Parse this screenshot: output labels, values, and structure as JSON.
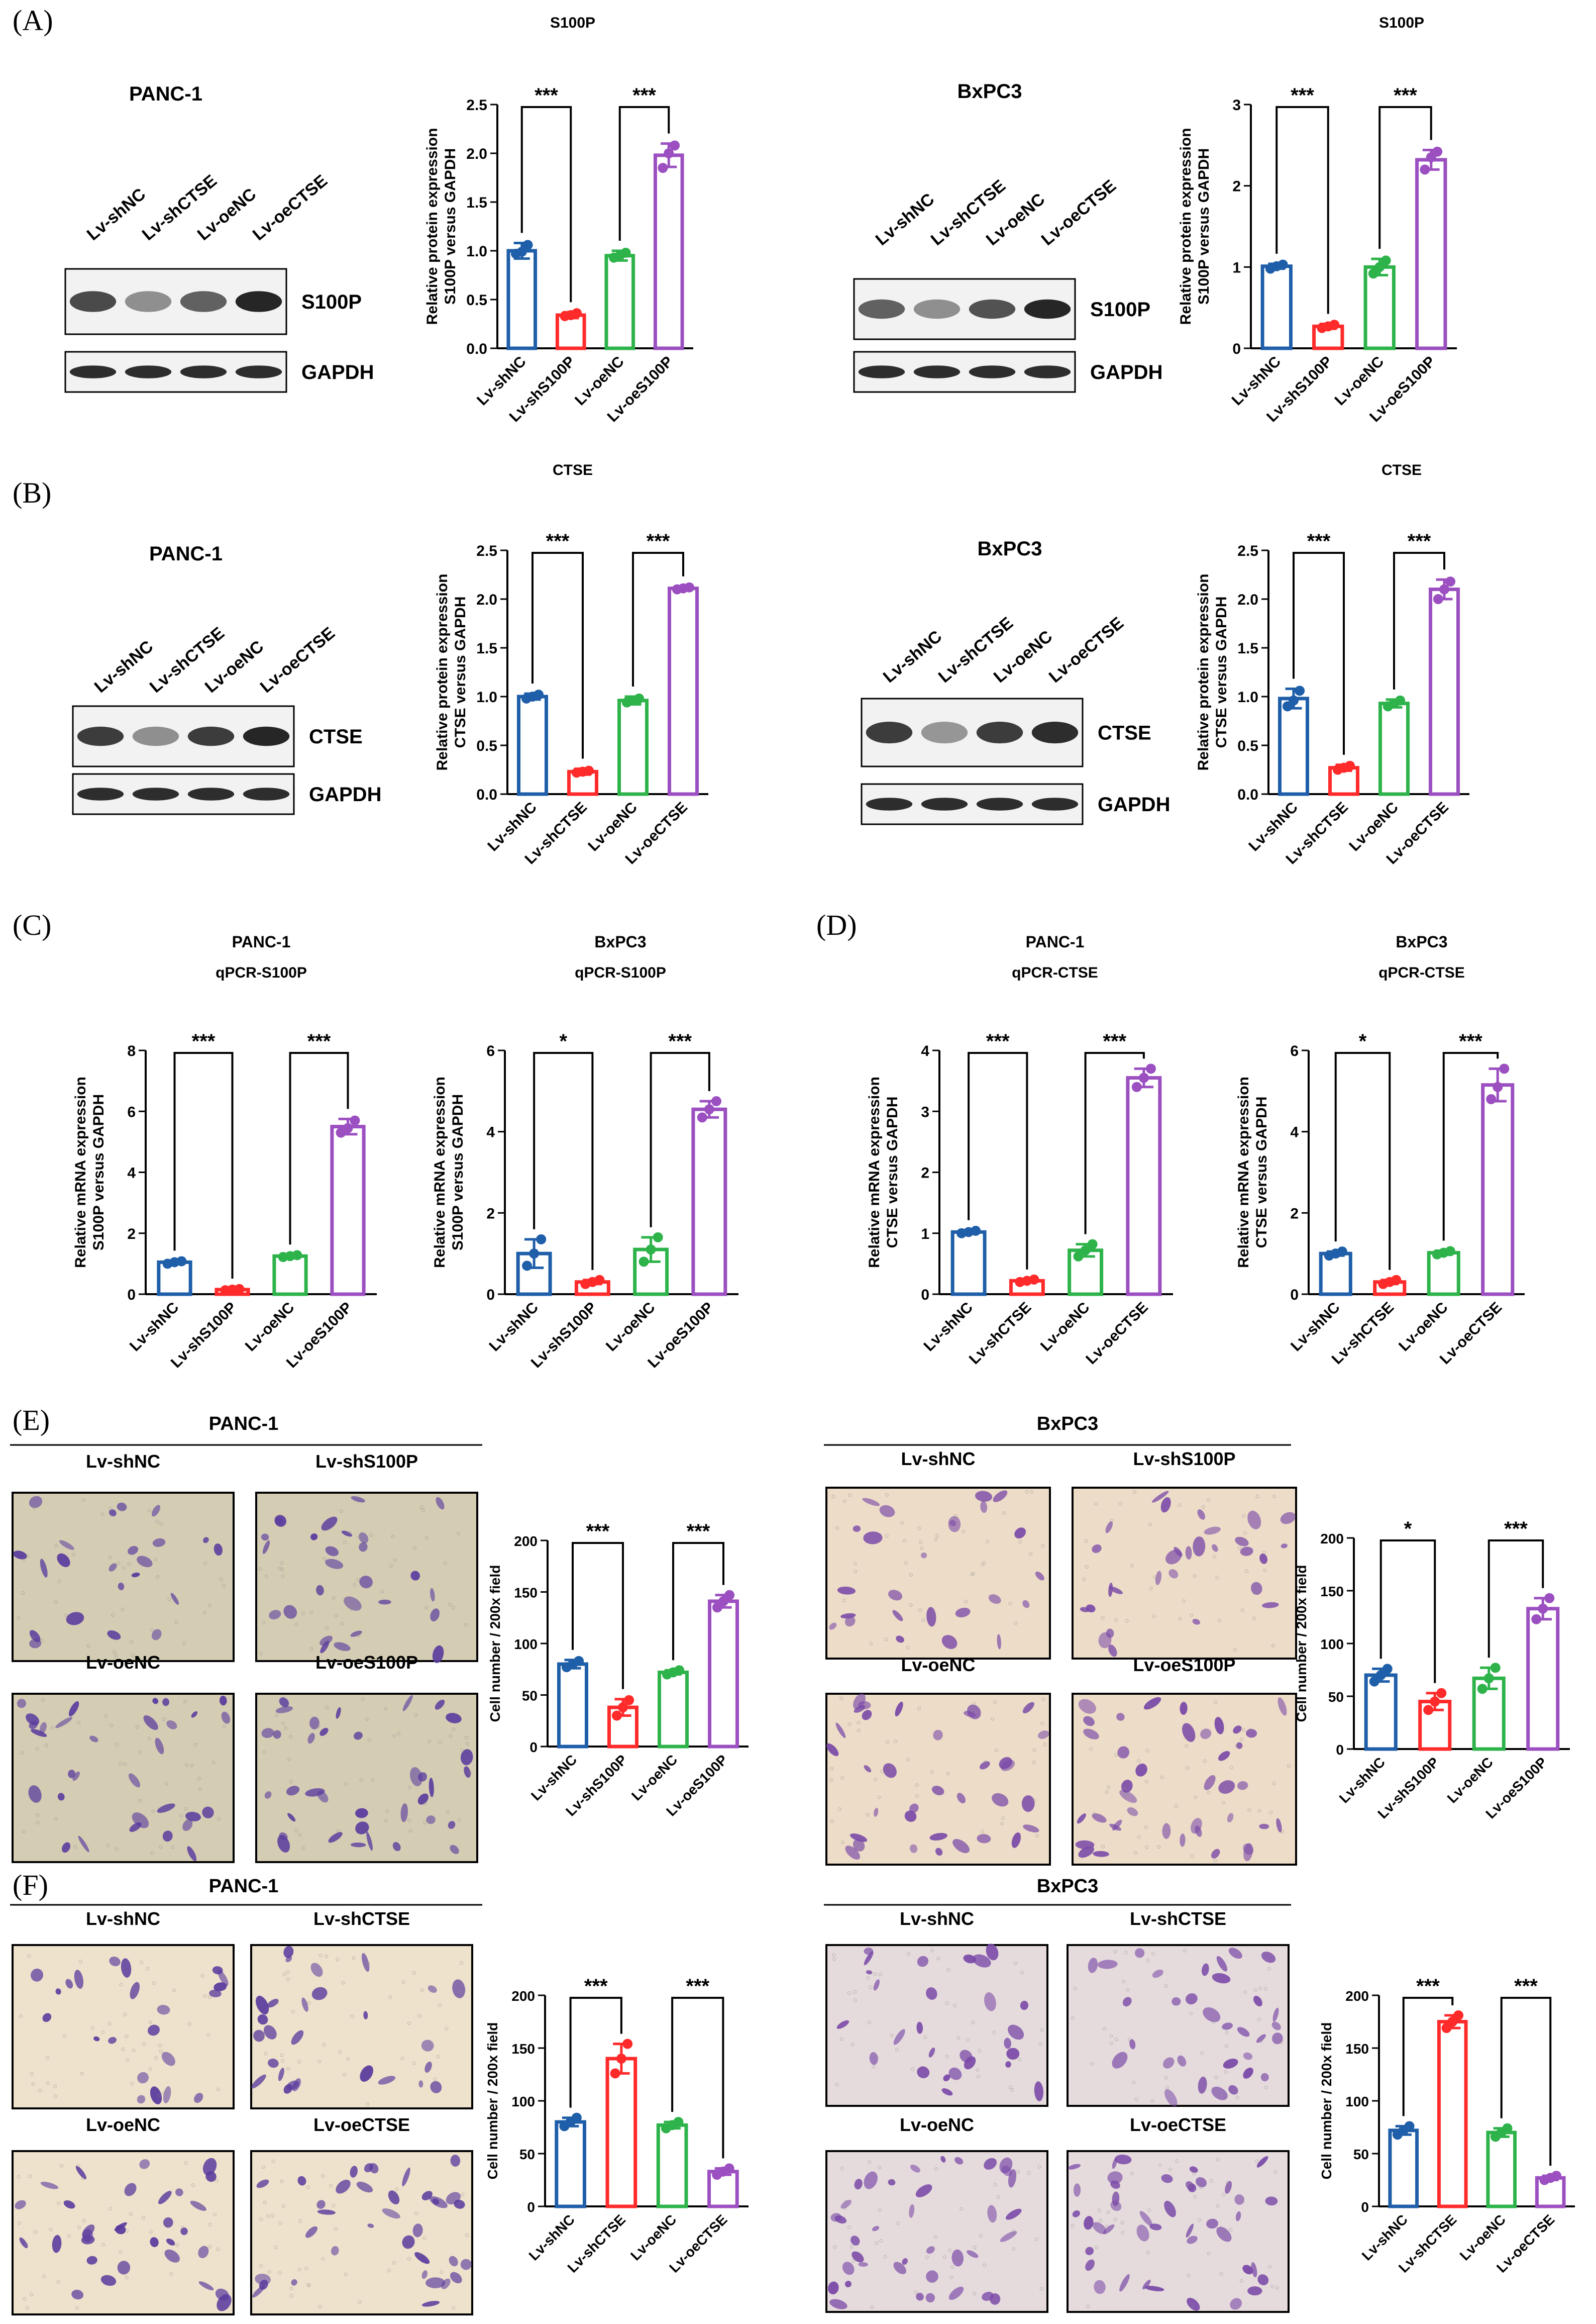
{
  "colors": {
    "blue": "#1f5ea8",
    "red": "#ff2a2a",
    "green": "#2db34a",
    "purple": "#9b4fc0",
    "ink": "#000000",
    "band": "#1a1a1a",
    "stainA": "#5a3c9e",
    "stainB": "#7a4aa8"
  },
  "panels": {
    "A": {
      "letter": "(A)",
      "left_title": "PANC-1",
      "right_title": "BxPC3",
      "blot_lanes": [
        "Lv-shNC",
        "Lv-shCTSE",
        "Lv-oeNC",
        "Lv-oeCTSE"
      ],
      "blot_rows": [
        "S100P",
        "GAPDH"
      ],
      "bandsA": [
        [
          0.75,
          0.3,
          0.6,
          1.0
        ],
        [
          0.95,
          0.95,
          0.95,
          0.95
        ]
      ],
      "bandsB": [
        [
          0.6,
          0.3,
          0.7,
          1.0
        ],
        [
          0.95,
          0.95,
          0.95,
          0.95
        ]
      ]
    },
    "B": {
      "letter": "(B)",
      "left_title": "PANC-1",
      "right_title": "BxPC3",
      "blot_lanes": [
        "Lv-shNC",
        "Lv-shCTSE",
        "Lv-oeNC",
        "Lv-oeCTSE"
      ],
      "blot_rows": [
        "CTSE",
        "GAPDH"
      ],
      "bandsA": [
        [
          0.85,
          0.3,
          0.85,
          1.0
        ],
        [
          0.95,
          0.95,
          0.95,
          0.95
        ]
      ],
      "bandsB": [
        [
          0.85,
          0.25,
          0.85,
          0.95
        ],
        [
          0.95,
          0.95,
          0.95,
          0.95
        ]
      ]
    },
    "C": {
      "letter": "(C)"
    },
    "D": {
      "letter": "(D)"
    },
    "E": {
      "letter": "(E)",
      "left_title": "PANC-1",
      "right_title": "BxPC3",
      "img_labels": [
        "Lv-shNC",
        "Lv-shS100P",
        "Lv-oeNC",
        "Lv-oeS100P"
      ]
    },
    "F": {
      "letter": "(F)",
      "left_title": "PANC-1",
      "right_title": "BxPC3",
      "img_labels": [
        "Lv-shNC",
        "Lv-shCTSE",
        "Lv-oeNC",
        "Lv-oeCTSE"
      ]
    }
  },
  "chart_data": [
    {
      "id": "A1",
      "type": "bar",
      "title": "S100P",
      "ylabel": [
        "Relative protein expression",
        "S100P versus GAPDH"
      ],
      "categories": [
        "Lv-shNC",
        "Lv-shS100P",
        "Lv-oeNC",
        "Lv-oeS100P"
      ],
      "values": [
        1.0,
        0.34,
        0.95,
        1.98
      ],
      "errors": [
        0.08,
        0.03,
        0.05,
        0.12
      ],
      "points": [
        [
          0.97,
          0.99,
          1.06
        ],
        [
          0.33,
          0.34,
          0.36
        ],
        [
          0.93,
          0.95,
          0.98
        ],
        [
          1.85,
          2.0,
          2.08
        ]
      ],
      "ylim": [
        0,
        2.5
      ],
      "yticks": [
        0,
        0.5,
        1.0,
        1.5,
        2.0,
        2.5
      ],
      "ticklabels": [
        "0.0",
        "0.5",
        "1.0",
        "1.5",
        "2.0",
        "2.5"
      ],
      "sig": [
        "***",
        "***"
      ]
    },
    {
      "id": "A2",
      "type": "bar",
      "title": "S100P",
      "ylabel": [
        "Relative protein expression",
        "S100P versus GAPDH"
      ],
      "categories": [
        "Lv-shNC",
        "Lv-shS100P",
        "Lv-oeNC",
        "Lv-oeS100P"
      ],
      "values": [
        1.01,
        0.27,
        1.0,
        2.32
      ],
      "errors": [
        0.03,
        0.03,
        0.1,
        0.12
      ],
      "points": [
        [
          0.98,
          1.01,
          1.03
        ],
        [
          0.25,
          0.27,
          0.29
        ],
        [
          0.92,
          1.0,
          1.08
        ],
        [
          2.2,
          2.35,
          2.42
        ]
      ],
      "ylim": [
        0,
        3
      ],
      "yticks": [
        0,
        1,
        2,
        3
      ],
      "ticklabels": [
        "0",
        "1",
        "2",
        "3"
      ],
      "sig": [
        "***",
        "***"
      ]
    },
    {
      "id": "B1",
      "type": "bar",
      "title": "CTSE",
      "ylabel": [
        "Relative protein expression",
        "CTSE versus GAPDH"
      ],
      "categories": [
        "Lv-shNC",
        "Lv-shCTSE",
        "Lv-oeNC",
        "Lv-oeCTSE"
      ],
      "values": [
        1.0,
        0.23,
        0.96,
        2.11
      ],
      "errors": [
        0.03,
        0.03,
        0.04,
        0.02
      ],
      "points": [
        [
          0.98,
          1.0,
          1.02
        ],
        [
          0.22,
          0.23,
          0.24
        ],
        [
          0.94,
          0.96,
          0.98
        ],
        [
          2.1,
          2.11,
          2.12
        ]
      ],
      "ylim": [
        0,
        2.5
      ],
      "yticks": [
        0,
        0.5,
        1.0,
        1.5,
        2.0,
        2.5
      ],
      "ticklabels": [
        "0.0",
        "0.5",
        "1.0",
        "1.5",
        "2.0",
        "2.5"
      ],
      "sig": [
        "***",
        "***"
      ]
    },
    {
      "id": "B2",
      "type": "bar",
      "title": "CTSE",
      "ylabel": [
        "Relative protein expression",
        "CTSE versus GAPDH"
      ],
      "categories": [
        "Lv-shNC",
        "Lv-shCTSE",
        "Lv-oeNC",
        "Lv-oeCTSE"
      ],
      "values": [
        0.98,
        0.27,
        0.93,
        2.1
      ],
      "errors": [
        0.1,
        0.03,
        0.04,
        0.1
      ],
      "points": [
        [
          0.9,
          0.96,
          1.06
        ],
        [
          0.25,
          0.27,
          0.29
        ],
        [
          0.9,
          0.93,
          0.96
        ],
        [
          2.0,
          2.1,
          2.18
        ]
      ],
      "ylim": [
        0,
        2.5
      ],
      "yticks": [
        0,
        0.5,
        1.0,
        1.5,
        2.0,
        2.5
      ],
      "ticklabels": [
        "0.0",
        "0.5",
        "1.0",
        "1.5",
        "2.0",
        "2.5"
      ],
      "sig": [
        "***",
        "***"
      ]
    },
    {
      "id": "C1",
      "type": "bar",
      "subtitle": "PANC-1",
      "title": "qPCR-S100P",
      "ylabel": [
        "Relative mRNA expression",
        "S100P versus GAPDH"
      ],
      "categories": [
        "Lv-shNC",
        "Lv-shS100P",
        "Lv-oeNC",
        "Lv-oeS100P"
      ],
      "values": [
        1.05,
        0.15,
        1.25,
        5.5
      ],
      "errors": [
        0.05,
        0.03,
        0.05,
        0.25
      ],
      "points": [
        [
          1.0,
          1.05,
          1.08
        ],
        [
          0.13,
          0.15,
          0.17
        ],
        [
          1.22,
          1.25,
          1.28
        ],
        [
          5.3,
          5.45,
          5.7
        ]
      ],
      "ylim": [
        0,
        8
      ],
      "yticks": [
        0,
        2,
        4,
        6,
        8
      ],
      "ticklabels": [
        "0",
        "2",
        "4",
        "6",
        "8"
      ],
      "sig": [
        "***",
        "***"
      ]
    },
    {
      "id": "C2",
      "type": "bar",
      "subtitle": "BxPC3",
      "title": "qPCR-S100P",
      "ylabel": [
        "Relative mRNA expression",
        "S100P versus GAPDH"
      ],
      "categories": [
        "Lv-shNC",
        "Lv-shS100P",
        "Lv-oeNC",
        "Lv-oeS100P"
      ],
      "values": [
        1.0,
        0.3,
        1.1,
        4.55
      ],
      "errors": [
        0.35,
        0.05,
        0.3,
        0.2
      ],
      "points": [
        [
          0.7,
          1.0,
          1.35
        ],
        [
          0.25,
          0.3,
          0.35
        ],
        [
          0.8,
          1.1,
          1.4
        ],
        [
          4.35,
          4.55,
          4.75
        ]
      ],
      "ylim": [
        0,
        6
      ],
      "yticks": [
        0,
        2,
        4,
        6
      ],
      "ticklabels": [
        "0",
        "2",
        "4",
        "6"
      ],
      "sig": [
        "*",
        "***"
      ]
    },
    {
      "id": "D1",
      "type": "bar",
      "subtitle": "PANC-1",
      "title": "qPCR-CTSE",
      "ylabel": [
        "Relative mRNA expression",
        "CTSE versus GAPDH"
      ],
      "categories": [
        "Lv-shNC",
        "Lv-shCTSE",
        "Lv-oeNC",
        "Lv-oeCTSE"
      ],
      "values": [
        1.02,
        0.22,
        0.72,
        3.55
      ],
      "errors": [
        0.03,
        0.02,
        0.1,
        0.15
      ],
      "points": [
        [
          1.0,
          1.02,
          1.04
        ],
        [
          0.2,
          0.22,
          0.24
        ],
        [
          0.62,
          0.72,
          0.82
        ],
        [
          3.4,
          3.55,
          3.7
        ]
      ],
      "ylim": [
        0,
        4
      ],
      "yticks": [
        0,
        1,
        2,
        3,
        4
      ],
      "ticklabels": [
        "0",
        "1",
        "2",
        "3",
        "4"
      ],
      "sig": [
        "***",
        "***"
      ]
    },
    {
      "id": "D2",
      "type": "bar",
      "subtitle": "BxPC3",
      "title": "qPCR-CTSE",
      "ylabel": [
        "Relative mRNA expression",
        "CTSE versus GAPDH"
      ],
      "categories": [
        "Lv-shNC",
        "Lv-shCTSE",
        "Lv-oeNC",
        "Lv-oeCTSE"
      ],
      "values": [
        1.0,
        0.3,
        1.02,
        5.15
      ],
      "errors": [
        0.05,
        0.05,
        0.05,
        0.4
      ],
      "points": [
        [
          0.95,
          1.0,
          1.05
        ],
        [
          0.25,
          0.3,
          0.35
        ],
        [
          0.98,
          1.02,
          1.06
        ],
        [
          4.8,
          5.1,
          5.55
        ]
      ],
      "ylim": [
        0,
        6
      ],
      "yticks": [
        0,
        2,
        4,
        6
      ],
      "ticklabels": [
        "0",
        "2",
        "4",
        "6"
      ],
      "sig": [
        "*",
        "***"
      ]
    },
    {
      "id": "E1",
      "type": "bar",
      "ylabel": [
        "Cell number / 200x field"
      ],
      "categories": [
        "Lv-shNC",
        "Lv-shS100P",
        "Lv-oeNC",
        "Lv-oeS100P"
      ],
      "values": [
        80,
        38,
        72,
        141
      ],
      "errors": [
        4,
        8,
        2,
        6
      ],
      "points": [
        [
          77,
          80,
          83
        ],
        [
          30,
          38,
          45
        ],
        [
          70,
          72,
          74
        ],
        [
          135,
          141,
          147
        ]
      ],
      "ylim": [
        0,
        200
      ],
      "yticks": [
        0,
        50,
        100,
        150,
        200
      ],
      "ticklabels": [
        "0",
        "50",
        "100",
        "150",
        "200"
      ],
      "sig": [
        "***",
        "***"
      ]
    },
    {
      "id": "E2",
      "type": "bar",
      "ylabel": [
        "Cell number / 200x field"
      ],
      "categories": [
        "Lv-shNC",
        "Lv-shS100P",
        "Lv-oeNC",
        "Lv-oeS100P"
      ],
      "values": [
        70,
        45,
        67,
        133
      ],
      "errors": [
        6,
        8,
        10,
        10
      ],
      "points": [
        [
          64,
          70,
          76
        ],
        [
          37,
          45,
          53
        ],
        [
          57,
          67,
          77
        ],
        [
          123,
          133,
          143
        ]
      ],
      "ylim": [
        0,
        200
      ],
      "yticks": [
        0,
        50,
        100,
        150,
        200
      ],
      "ticklabels": [
        "0",
        "50",
        "100",
        "150",
        "200"
      ],
      "sig": [
        "*",
        "***"
      ]
    },
    {
      "id": "F1",
      "type": "bar",
      "ylabel": [
        "Cell number / 200x field"
      ],
      "categories": [
        "Lv-shNC",
        "Lv-shCTSE",
        "Lv-oeNC",
        "Lv-oeCTSE"
      ],
      "values": [
        80,
        140,
        77,
        33
      ],
      "errors": [
        4,
        14,
        3,
        3
      ],
      "points": [
        [
          76,
          80,
          84
        ],
        [
          126,
          140,
          154
        ],
        [
          74,
          77,
          80
        ],
        [
          30,
          33,
          36
        ]
      ],
      "ylim": [
        0,
        200
      ],
      "yticks": [
        0,
        50,
        100,
        150,
        200
      ],
      "ticklabels": [
        "0",
        "50",
        "100",
        "150",
        "200"
      ],
      "sig": [
        "***",
        "***"
      ]
    },
    {
      "id": "F2",
      "type": "bar",
      "ylabel": [
        "Cell number / 200x field"
      ],
      "categories": [
        "Lv-shNC",
        "Lv-shCTSE",
        "Lv-oeNC",
        "Lv-oeCTSE"
      ],
      "values": [
        72,
        175,
        70,
        27
      ],
      "errors": [
        4,
        6,
        4,
        2
      ],
      "points": [
        [
          68,
          72,
          76
        ],
        [
          169,
          175,
          181
        ],
        [
          66,
          70,
          74
        ],
        [
          25,
          27,
          29
        ]
      ],
      "ylim": [
        0,
        200
      ],
      "yticks": [
        0,
        50,
        100,
        150,
        200
      ],
      "ticklabels": [
        "0",
        "50",
        "100",
        "150",
        "200"
      ],
      "sig": [
        "***",
        "***"
      ]
    }
  ]
}
